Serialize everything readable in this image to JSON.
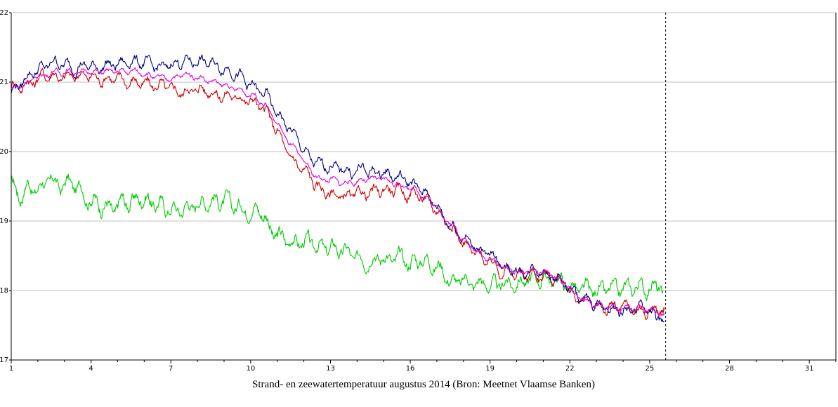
{
  "chart_data": {
    "type": "line",
    "title": "Strand- en zeewatertemperatuur augustus 2014 (Bron: Meetnet Vlaamse Banken)",
    "xlabel": "",
    "ylabel": "",
    "xlim": [
      1,
      32
    ],
    "ylim": [
      17,
      22
    ],
    "x_ticks": [
      1,
      4,
      7,
      10,
      13,
      16,
      19,
      22,
      25,
      28,
      31
    ],
    "y_ticks": [
      17,
      18,
      19,
      20,
      21,
      22
    ],
    "grid": "horizontal",
    "current_time_marker": 25.6,
    "series": [
      {
        "color": "#00cc00",
        "points": [
          [
            1,
            19.55
          ],
          [
            1.3,
            19.35
          ],
          [
            1.6,
            19.5
          ],
          [
            2.0,
            19.45
          ],
          [
            2.4,
            19.6
          ],
          [
            2.8,
            19.5
          ],
          [
            3.2,
            19.55
          ],
          [
            3.6,
            19.45
          ],
          [
            4.0,
            19.3
          ],
          [
            4.3,
            19.25
          ],
          [
            4.6,
            19.2
          ],
          [
            4.9,
            19.15
          ],
          [
            5.2,
            19.3
          ],
          [
            5.5,
            19.25
          ],
          [
            5.8,
            19.35
          ],
          [
            6.1,
            19.3
          ],
          [
            6.4,
            19.25
          ],
          [
            6.8,
            19.2
          ],
          [
            7.2,
            19.15
          ],
          [
            7.6,
            19.2
          ],
          [
            8.0,
            19.25
          ],
          [
            8.4,
            19.3
          ],
          [
            8.8,
            19.3
          ],
          [
            9.2,
            19.25
          ],
          [
            9.6,
            19.2
          ],
          [
            10.0,
            19.15
          ],
          [
            10.3,
            19.2
          ],
          [
            10.6,
            19.0
          ],
          [
            10.9,
            18.8
          ],
          [
            11.2,
            18.75
          ],
          [
            11.6,
            18.7
          ],
          [
            12.0,
            18.7
          ],
          [
            12.4,
            18.65
          ],
          [
            12.8,
            18.6
          ],
          [
            13.2,
            18.6
          ],
          [
            13.6,
            18.55
          ],
          [
            14.0,
            18.45
          ],
          [
            14.4,
            18.45
          ],
          [
            14.8,
            18.5
          ],
          [
            15.2,
            18.45
          ],
          [
            15.6,
            18.45
          ],
          [
            16.0,
            18.4
          ],
          [
            16.4,
            18.45
          ],
          [
            16.8,
            18.4
          ],
          [
            17.2,
            18.3
          ],
          [
            17.6,
            18.1
          ],
          [
            18.0,
            18.15
          ],
          [
            18.4,
            18.1
          ],
          [
            18.8,
            18.1
          ],
          [
            19.2,
            18.05
          ],
          [
            19.6,
            18.1
          ],
          [
            20.0,
            18.1
          ],
          [
            20.4,
            18.15
          ],
          [
            20.8,
            18.2
          ],
          [
            21.2,
            18.15
          ],
          [
            21.6,
            18.15
          ],
          [
            22.0,
            18.05
          ],
          [
            22.4,
            18.0
          ],
          [
            22.8,
            18.0
          ],
          [
            23.2,
            18.0
          ],
          [
            23.6,
            18.0
          ],
          [
            24.0,
            18.0
          ],
          [
            24.4,
            18.05
          ],
          [
            24.8,
            18.05
          ],
          [
            25.2,
            18.05
          ],
          [
            25.5,
            18.0
          ]
        ],
        "noise": 0.13
      },
      {
        "color": "#cc0000",
        "points": [
          [
            1,
            20.95
          ],
          [
            1.4,
            20.95
          ],
          [
            1.8,
            21.0
          ],
          [
            2.2,
            21.1
          ],
          [
            2.6,
            21.1
          ],
          [
            3.0,
            21.05
          ],
          [
            3.4,
            21.1
          ],
          [
            3.8,
            21.1
          ],
          [
            4.2,
            21.05
          ],
          [
            4.6,
            21.05
          ],
          [
            5.0,
            21.05
          ],
          [
            5.4,
            21.0
          ],
          [
            5.8,
            21.0
          ],
          [
            6.2,
            20.95
          ],
          [
            6.6,
            20.95
          ],
          [
            7.0,
            20.9
          ],
          [
            7.4,
            20.85
          ],
          [
            7.8,
            20.9
          ],
          [
            8.2,
            20.9
          ],
          [
            8.6,
            20.85
          ],
          [
            9.0,
            20.8
          ],
          [
            9.4,
            20.8
          ],
          [
            9.8,
            20.75
          ],
          [
            10.2,
            20.7
          ],
          [
            10.6,
            20.55
          ],
          [
            11.0,
            20.3
          ],
          [
            11.4,
            19.95
          ],
          [
            11.8,
            19.8
          ],
          [
            12.2,
            19.65
          ],
          [
            12.6,
            19.45
          ],
          [
            13.0,
            19.4
          ],
          [
            13.4,
            19.35
          ],
          [
            13.8,
            19.35
          ],
          [
            14.2,
            19.4
          ],
          [
            14.6,
            19.4
          ],
          [
            15.0,
            19.45
          ],
          [
            15.4,
            19.45
          ],
          [
            15.8,
            19.4
          ],
          [
            16.2,
            19.4
          ],
          [
            16.6,
            19.3
          ],
          [
            17.0,
            19.15
          ],
          [
            17.4,
            19.0
          ],
          [
            17.8,
            18.8
          ],
          [
            18.2,
            18.6
          ],
          [
            18.6,
            18.5
          ],
          [
            19.0,
            18.4
          ],
          [
            19.4,
            18.3
          ],
          [
            19.8,
            18.25
          ],
          [
            20.2,
            18.2
          ],
          [
            20.6,
            18.25
          ],
          [
            21.0,
            18.2
          ],
          [
            21.4,
            18.2
          ],
          [
            21.8,
            18.1
          ],
          [
            22.2,
            17.9
          ],
          [
            22.6,
            17.85
          ],
          [
            23.0,
            17.75
          ],
          [
            23.4,
            17.75
          ],
          [
            23.8,
            17.75
          ],
          [
            24.2,
            17.75
          ],
          [
            24.6,
            17.7
          ],
          [
            25.0,
            17.7
          ],
          [
            25.3,
            17.72
          ],
          [
            25.55,
            17.72
          ]
        ],
        "noise": 0.1
      },
      {
        "color": "#000080",
        "points": [
          [
            1,
            20.85
          ],
          [
            1.4,
            21.0
          ],
          [
            1.8,
            21.15
          ],
          [
            2.2,
            21.2
          ],
          [
            2.6,
            21.3
          ],
          [
            3.0,
            21.25
          ],
          [
            3.4,
            21.2
          ],
          [
            3.8,
            21.25
          ],
          [
            4.2,
            21.2
          ],
          [
            4.6,
            21.25
          ],
          [
            5.0,
            21.25
          ],
          [
            5.4,
            21.3
          ],
          [
            5.8,
            21.3
          ],
          [
            6.2,
            21.25
          ],
          [
            6.6,
            21.2
          ],
          [
            7.0,
            21.25
          ],
          [
            7.4,
            21.3
          ],
          [
            7.8,
            21.3
          ],
          [
            8.2,
            21.3
          ],
          [
            8.6,
            21.25
          ],
          [
            9.0,
            21.2
          ],
          [
            9.4,
            21.15
          ],
          [
            9.8,
            21.0
          ],
          [
            10.2,
            20.9
          ],
          [
            10.6,
            20.8
          ],
          [
            11.0,
            20.55
          ],
          [
            11.4,
            20.35
          ],
          [
            11.8,
            20.15
          ],
          [
            12.2,
            19.9
          ],
          [
            12.6,
            19.8
          ],
          [
            13.0,
            19.8
          ],
          [
            13.4,
            19.75
          ],
          [
            13.8,
            19.7
          ],
          [
            14.2,
            19.75
          ],
          [
            14.6,
            19.7
          ],
          [
            15.0,
            19.7
          ],
          [
            15.4,
            19.65
          ],
          [
            15.8,
            19.6
          ],
          [
            16.2,
            19.5
          ],
          [
            16.6,
            19.4
          ],
          [
            17.0,
            19.2
          ],
          [
            17.4,
            19.0
          ],
          [
            17.8,
            18.85
          ],
          [
            18.2,
            18.7
          ],
          [
            18.6,
            18.6
          ],
          [
            19.0,
            18.5
          ],
          [
            19.4,
            18.4
          ],
          [
            19.8,
            18.3
          ],
          [
            20.2,
            18.25
          ],
          [
            20.6,
            18.3
          ],
          [
            21.0,
            18.3
          ],
          [
            21.4,
            18.2
          ],
          [
            21.8,
            18.1
          ],
          [
            22.2,
            17.95
          ],
          [
            22.6,
            17.85
          ],
          [
            23.0,
            17.8
          ],
          [
            23.4,
            17.75
          ],
          [
            23.8,
            17.7
          ],
          [
            24.2,
            17.7
          ],
          [
            24.6,
            17.75
          ],
          [
            25.0,
            17.7
          ],
          [
            25.3,
            17.6
          ],
          [
            25.55,
            17.55
          ]
        ],
        "noise": 0.09
      },
      {
        "color": "#e000e0",
        "points": [
          [
            1,
            20.9
          ],
          [
            1.4,
            20.95
          ],
          [
            1.8,
            21.05
          ],
          [
            2.2,
            21.1
          ],
          [
            2.6,
            21.15
          ],
          [
            3.0,
            21.15
          ],
          [
            3.4,
            21.15
          ],
          [
            3.8,
            21.15
          ],
          [
            4.2,
            21.15
          ],
          [
            4.6,
            21.15
          ],
          [
            5.0,
            21.15
          ],
          [
            5.4,
            21.15
          ],
          [
            5.8,
            21.15
          ],
          [
            6.2,
            21.1
          ],
          [
            6.6,
            21.05
          ],
          [
            7.0,
            21.05
          ],
          [
            7.4,
            21.1
          ],
          [
            7.8,
            21.1
          ],
          [
            8.2,
            21.05
          ],
          [
            8.6,
            21.0
          ],
          [
            9.0,
            20.95
          ],
          [
            9.4,
            20.9
          ],
          [
            9.8,
            20.85
          ],
          [
            10.2,
            20.8
          ],
          [
            10.6,
            20.65
          ],
          [
            11.0,
            20.4
          ],
          [
            11.4,
            20.15
          ],
          [
            11.8,
            19.95
          ],
          [
            12.2,
            19.75
          ],
          [
            12.6,
            19.6
          ],
          [
            13.0,
            19.6
          ],
          [
            13.4,
            19.55
          ],
          [
            13.8,
            19.55
          ],
          [
            14.2,
            19.6
          ],
          [
            14.6,
            19.6
          ],
          [
            15.0,
            19.6
          ],
          [
            15.4,
            19.55
          ],
          [
            15.8,
            19.5
          ],
          [
            16.2,
            19.45
          ],
          [
            16.6,
            19.35
          ],
          [
            17.0,
            19.2
          ],
          [
            17.4,
            19.0
          ],
          [
            17.8,
            18.85
          ],
          [
            18.2,
            18.65
          ],
          [
            18.6,
            18.55
          ],
          [
            19.0,
            18.45
          ],
          [
            19.4,
            18.35
          ],
          [
            19.8,
            18.3
          ],
          [
            20.2,
            18.25
          ],
          [
            20.6,
            18.3
          ],
          [
            21.0,
            18.25
          ],
          [
            21.4,
            18.2
          ],
          [
            21.8,
            18.1
          ],
          [
            22.2,
            17.95
          ],
          [
            22.6,
            17.85
          ],
          [
            23.0,
            17.8
          ],
          [
            23.4,
            17.75
          ],
          [
            23.8,
            17.75
          ],
          [
            24.2,
            17.75
          ],
          [
            24.6,
            17.75
          ],
          [
            25.0,
            17.7
          ],
          [
            25.3,
            17.68
          ],
          [
            25.55,
            17.65
          ]
        ],
        "noise": 0.05
      }
    ]
  }
}
